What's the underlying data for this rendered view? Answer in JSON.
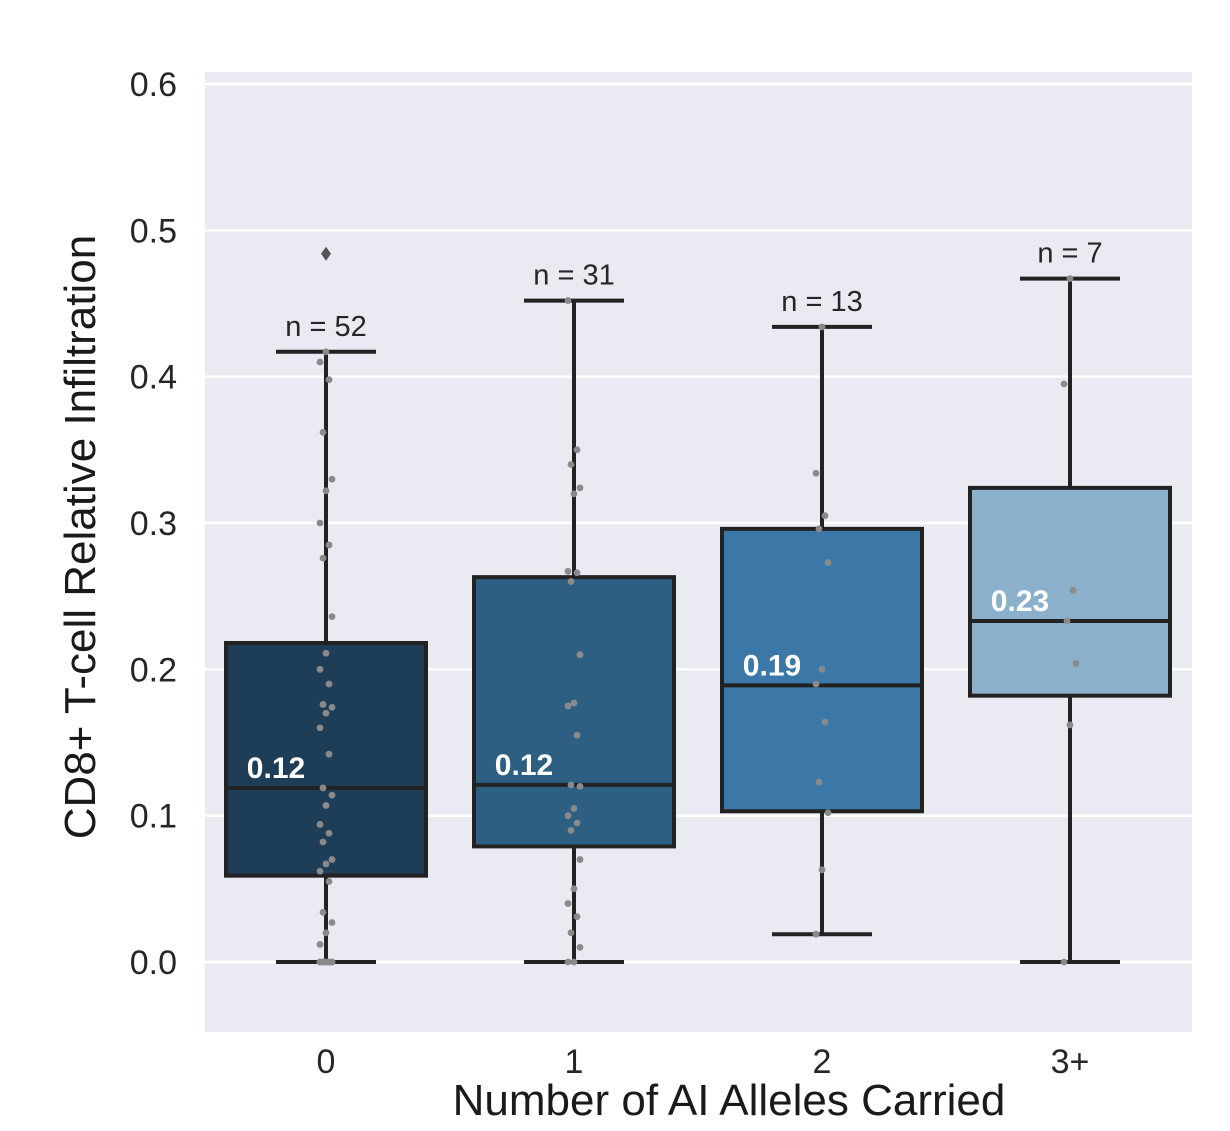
{
  "chart_data": {
    "type": "box",
    "xlabel": "Number of AI Alleles Carried",
    "ylabel": "CD8+ T-cell Relative Infiltration",
    "ylim": [
      -0.048,
      0.605
    ],
    "yticks": [
      0.0,
      0.1,
      0.2,
      0.3,
      0.4,
      0.5,
      0.6
    ],
    "ytick_labels": [
      "0.0",
      "0.1",
      "0.2",
      "0.3",
      "0.4",
      "0.5",
      "0.6"
    ],
    "grid": true,
    "colors": {
      "background": "#eaeaf2",
      "grid": "#ffffff",
      "outline": "#222222",
      "points": "#8a8a8a"
    },
    "categories": [
      {
        "label": "0",
        "n_label": "n = 52",
        "median_label": "0.12",
        "color": "#1e3e57",
        "whisker_low": 0.0,
        "q1": 0.059,
        "median": 0.119,
        "q3": 0.218,
        "whisker_high": 0.417,
        "outliers": [
          0.484
        ],
        "points": [
          0.0,
          0.0,
          0.0,
          0.0,
          0.0,
          0.0,
          0.0,
          0.0,
          0.0,
          0.0,
          0.012,
          0.02,
          0.027,
          0.034,
          0.055,
          0.062,
          0.067,
          0.07,
          0.082,
          0.088,
          0.094,
          0.107,
          0.114,
          0.119,
          0.142,
          0.16,
          0.17,
          0.174,
          0.176,
          0.19,
          0.2,
          0.211,
          0.236,
          0.276,
          0.285,
          0.3,
          0.322,
          0.33,
          0.362,
          0.398,
          0.41,
          0.417
        ]
      },
      {
        "label": "1",
        "n_label": "n = 31",
        "median_label": "0.12",
        "color": "#2d5f82",
        "whisker_low": 0.0,
        "q1": 0.079,
        "median": 0.121,
        "q3": 0.263,
        "whisker_high": 0.452,
        "outliers": [],
        "points": [
          0.0,
          0.0,
          0.01,
          0.02,
          0.031,
          0.04,
          0.05,
          0.07,
          0.09,
          0.095,
          0.1,
          0.105,
          0.12,
          0.121,
          0.155,
          0.175,
          0.177,
          0.21,
          0.26,
          0.266,
          0.267,
          0.32,
          0.324,
          0.34,
          0.35,
          0.452
        ]
      },
      {
        "label": "2",
        "n_label": "n = 13",
        "median_label": "0.19",
        "color": "#3b78a7",
        "whisker_low": 0.019,
        "q1": 0.103,
        "median": 0.189,
        "q3": 0.296,
        "whisker_high": 0.434,
        "outliers": [],
        "points": [
          0.019,
          0.063,
          0.102,
          0.123,
          0.164,
          0.19,
          0.2,
          0.273,
          0.296,
          0.305,
          0.334,
          0.434
        ]
      },
      {
        "label": "3+",
        "n_label": "n = 7",
        "median_label": "0.23",
        "color": "#8bb0cb",
        "whisker_low": 0.0,
        "q1": 0.182,
        "median": 0.233,
        "q3": 0.324,
        "whisker_high": 0.467,
        "outliers": [],
        "points": [
          0.0,
          0.162,
          0.204,
          0.233,
          0.254,
          0.395,
          0.467
        ]
      }
    ]
  }
}
